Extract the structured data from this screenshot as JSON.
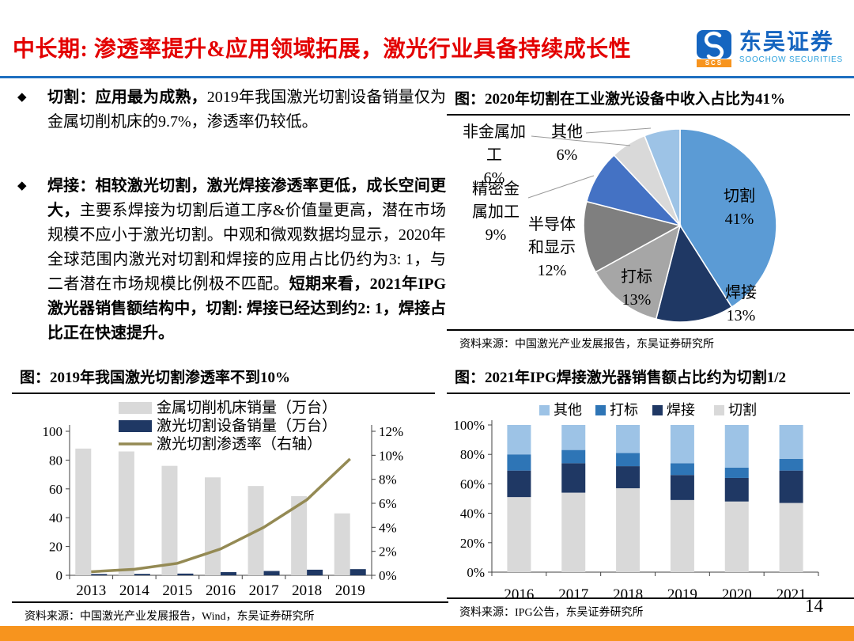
{
  "header": {
    "title": "中长期: 渗透率提升&应用领域拓展，激光行业具备持续成长性",
    "logo": {
      "brand": "东吴证券",
      "subtitle": "SOOCHOW SECURITIES",
      "badge": "SCS"
    }
  },
  "bullets": [
    {
      "b1": "切割：应用最为成熟，",
      "r1": "2019年我国激光切割设备销量仅为金属切削机床的9.7%，渗透率仍较低。",
      "b2": ""
    },
    {
      "b1": "焊接：相较激光切割，激光焊接渗透率更低，成长空间更大，",
      "r1": "主要系焊接为切割后道工序&价值量更高，潜在市场规模不应小于激光切割。中观和微观数据均显示，2020年全球范围内激光对切割和焊接的应用占比仍约为3: 1，与二者潜在市场规模比例极不匹配。",
      "b2": "短期来看，2021年IPG激光器销售额结构中，切割: 焊接已经达到约2: 1，焊接占比正在快速提升。"
    }
  ],
  "sections": {
    "pie": {
      "title": "图：2020年切割在工业激光设备中收入占比为41%",
      "source": "资料来源：中国激光产业发展报告，东吴证券研究所"
    },
    "combo": {
      "title": "图：2019年我国激光切割渗透率不到10%",
      "source": "资料来源：中国激光产业发展报告，Wind，东吴证券研究所"
    },
    "stack": {
      "title": "图：2021年IPG焊接激光器销售额占比约为切割1/2",
      "source": "资料来源：IPG公告，东吴证券研究所"
    }
  },
  "page_number": "14",
  "colors": {
    "accent_red": "#e30000",
    "rule_blue": "#1e6fc0",
    "footer_orange": "#f7941e"
  },
  "chart_data": [
    {
      "id": "pie",
      "type": "pie",
      "title": "2020年切割在工业激光设备中收入占比为41%",
      "legend_position": "labels-on-chart",
      "slices": [
        {
          "label": "切割",
          "value": 41,
          "color": "#5B9BD5"
        },
        {
          "label": "焊接",
          "value": 13,
          "color": "#1F3864"
        },
        {
          "label": "打标",
          "value": 13,
          "color": "#A6A6A6"
        },
        {
          "label": "半导体和显示",
          "value": 12,
          "color": "#7F7F7F"
        },
        {
          "label": "精密金属加工",
          "value": 9,
          "color": "#4472C4"
        },
        {
          "label": "非金属加工",
          "value": 6,
          "color": "#D9D9D9"
        },
        {
          "label": "其他",
          "value": 6,
          "color": "#9DC3E6"
        }
      ]
    },
    {
      "id": "combo",
      "type": "bar",
      "subtype": "bar+line-dual-axis",
      "title": "2019年我国激光切割渗透率不到10%",
      "categories": [
        "2013",
        "2014",
        "2015",
        "2016",
        "2017",
        "2018",
        "2019"
      ],
      "series": [
        {
          "name": "金属切削机床销量（万台）",
          "type": "bar",
          "axis": "left",
          "color": "#D9D9D9",
          "values": [
            88,
            86,
            76,
            68,
            62,
            55,
            43
          ]
        },
        {
          "name": "激光切割设备销量（万台）",
          "type": "bar",
          "axis": "left",
          "color": "#1F3864",
          "values": [
            0.9,
            1.0,
            1.2,
            2.2,
            3.0,
            3.9,
            4.3
          ]
        },
        {
          "name": "激光切割渗透率（右轴）",
          "type": "line",
          "axis": "right",
          "color": "#948A54",
          "values": [
            0.3,
            0.5,
            1.0,
            2.2,
            4.0,
            6.3,
            9.7
          ]
        }
      ],
      "left_axis": {
        "min": 0,
        "max": 100,
        "step": 20,
        "suffix": ""
      },
      "right_axis": {
        "min": 0,
        "max": 12,
        "step": 2,
        "suffix": "%"
      },
      "grid": false,
      "legend_position": "top-left-stacked"
    },
    {
      "id": "stack",
      "type": "bar",
      "subtype": "stacked-bar-100",
      "title": "2021年IPG焊接激光器销售额占比约为切割1/2",
      "categories": [
        "2016",
        "2017",
        "2018",
        "2019",
        "2020",
        "2021"
      ],
      "legend_order": [
        "其他",
        "打标",
        "焊接",
        "切割"
      ],
      "series": [
        {
          "name": "切割",
          "color": "#D9D9D9",
          "values": [
            51,
            54,
            57,
            49,
            48,
            47
          ]
        },
        {
          "name": "焊接",
          "color": "#1F3864",
          "values": [
            18,
            20,
            15,
            17,
            16,
            22
          ]
        },
        {
          "name": "打标",
          "color": "#2E75B6",
          "values": [
            11,
            9,
            9,
            8,
            7,
            8
          ]
        },
        {
          "name": "其他",
          "color": "#9DC3E6",
          "values": [
            20,
            17,
            19,
            26,
            29,
            23
          ]
        }
      ],
      "y_axis": {
        "min": 0,
        "max": 100,
        "step": 20,
        "suffix": "%"
      },
      "grid": false,
      "legend_position": "top-center"
    }
  ]
}
